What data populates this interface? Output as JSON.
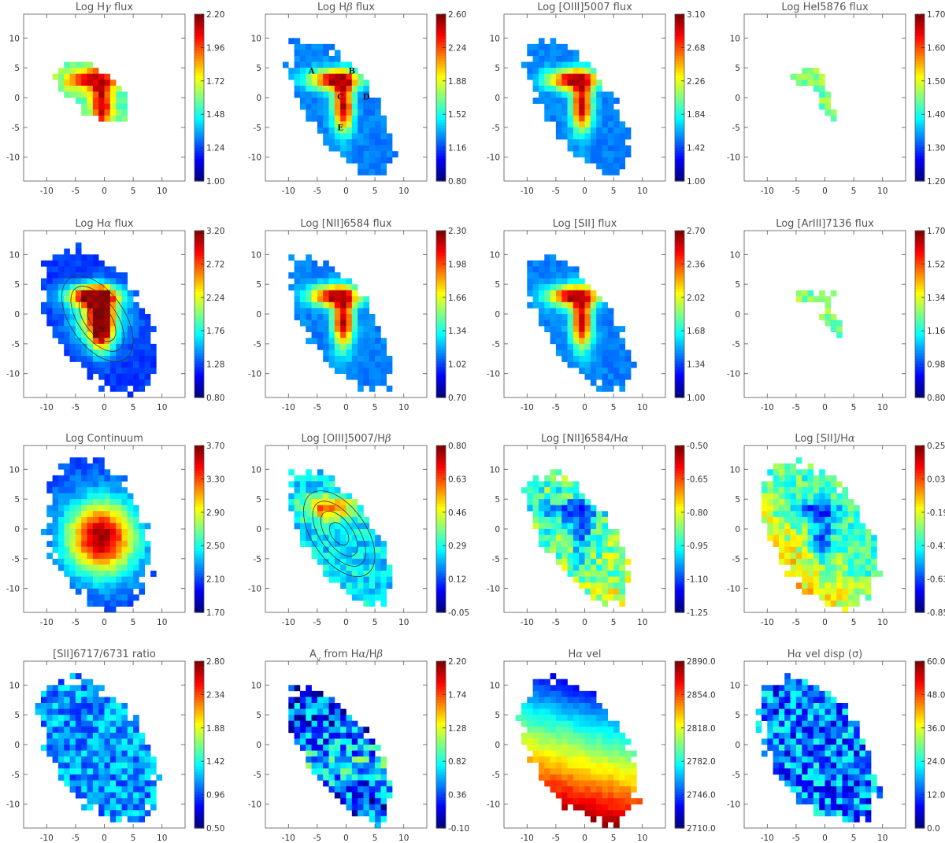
{
  "chart_data": [
    {
      "type": "heatmap",
      "title": "Log Hγ flux",
      "title_main": "Log H",
      "title_greek": "γ",
      "title_rest": " flux",
      "colorbar": {
        "ticks": [
          "2.20",
          "1.96",
          "1.72",
          "1.48",
          "1.24",
          "1.00"
        ],
        "min": 1.0,
        "max": 2.2
      },
      "xticks": [
        "-10",
        "-5",
        "0",
        "5",
        "10"
      ],
      "yticks": [
        "10",
        "5",
        "0",
        "-5",
        "-10"
      ],
      "xlim": [
        -14,
        14
      ],
      "ylim": [
        -14,
        14
      ],
      "shape": "g"
    },
    {
      "type": "heatmap",
      "title": "Log Hβ flux",
      "title_main": "Log H",
      "title_greek": "β",
      "title_rest": " flux",
      "colorbar": {
        "ticks": [
          "2.60",
          "2.24",
          "1.88",
          "1.52",
          "1.16",
          "0.80"
        ],
        "min": 0.8,
        "max": 2.6
      },
      "xticks": [
        "-10",
        "-5",
        "0",
        "5",
        "10"
      ],
      "yticks": [
        "10",
        "5",
        "0",
        "-5",
        "-10"
      ],
      "xlim": [
        -14,
        14
      ],
      "ylim": [
        -14,
        14
      ],
      "shape": "main",
      "knots": [
        {
          "label": "A",
          "x": -6,
          "y": 4
        },
        {
          "label": "B",
          "x": 1,
          "y": 4
        },
        {
          "label": "C",
          "x": -1,
          "y": -0.3
        },
        {
          "label": "D",
          "x": 3.5,
          "y": -0.3
        },
        {
          "label": "E",
          "x": -1,
          "y": -5.5
        }
      ]
    },
    {
      "type": "heatmap",
      "title": "Log [OIII]5007 flux",
      "title_main": "Log [OIII]5007 flux",
      "title_greek": "",
      "title_rest": "",
      "colorbar": {
        "ticks": [
          "3.10",
          "2.68",
          "2.26",
          "1.84",
          "1.42",
          "1.00"
        ],
        "min": 1.0,
        "max": 3.1
      },
      "xticks": [
        "-10",
        "-5",
        "0",
        "5",
        "10"
      ],
      "yticks": [
        "10",
        "5",
        "0",
        "-5",
        "-10"
      ],
      "xlim": [
        -14,
        14
      ],
      "ylim": [
        -14,
        14
      ],
      "shape": "main"
    },
    {
      "type": "heatmap",
      "title": "Log HeI5876 flux",
      "title_main": "Log HeI5876 flux",
      "title_greek": "",
      "title_rest": "",
      "colorbar": {
        "ticks": [
          "1.70",
          "1.60",
          "1.50",
          "1.40",
          "1.30",
          "1.20"
        ],
        "min": 1.2,
        "max": 1.7
      },
      "xticks": [
        "-10",
        "-5",
        "0",
        "5",
        "10"
      ],
      "yticks": [
        "10",
        "5",
        "0",
        "-5",
        "-10"
      ],
      "xlim": [
        -14,
        14
      ],
      "ylim": [
        -14,
        14
      ],
      "shape": "he"
    },
    {
      "type": "heatmap",
      "title": "Log Hα flux",
      "title_main": "Log H",
      "title_greek": "α",
      "title_rest": " flux",
      "colorbar": {
        "ticks": [
          "3.20",
          "2.72",
          "2.24",
          "1.76",
          "1.28",
          "0.80"
        ],
        "min": 0.8,
        "max": 3.2
      },
      "xticks": [
        "-10",
        "-5",
        "0",
        "5",
        "10"
      ],
      "yticks": [
        "10",
        "5",
        "0",
        "-5",
        "-10"
      ],
      "xlim": [
        -14,
        14
      ],
      "ylim": [
        -14,
        14
      ],
      "shape": "wide",
      "contours": true
    },
    {
      "type": "heatmap",
      "title": "Log [NII]6584 flux",
      "title_main": "Log [NII]6584 flux",
      "title_greek": "",
      "title_rest": "",
      "colorbar": {
        "ticks": [
          "2.30",
          "1.98",
          "1.66",
          "1.34",
          "1.02",
          "0.70"
        ],
        "min": 0.7,
        "max": 2.3
      },
      "xticks": [
        "-10",
        "-5",
        "0",
        "5",
        "10"
      ],
      "yticks": [
        "10",
        "5",
        "0",
        "-5",
        "-10"
      ],
      "xlim": [
        -14,
        14
      ],
      "ylim": [
        -14,
        14
      ],
      "shape": "main"
    },
    {
      "type": "heatmap",
      "title": "Log [SII] flux",
      "title_main": "Log [SII] flux",
      "title_greek": "",
      "title_rest": "",
      "colorbar": {
        "ticks": [
          "2.70",
          "2.36",
          "2.02",
          "1.68",
          "1.34",
          "1.00"
        ],
        "min": 1.0,
        "max": 2.7
      },
      "xticks": [
        "-10",
        "-5",
        "0",
        "5",
        "10"
      ],
      "yticks": [
        "10",
        "5",
        "0",
        "-5",
        "-10"
      ],
      "xlim": [
        -14,
        14
      ],
      "ylim": [
        -14,
        14
      ],
      "shape": "main"
    },
    {
      "type": "heatmap",
      "title": "Log [ArIII]7136 flux",
      "title_main": "Log [ArIII]7136 flux",
      "title_greek": "",
      "title_rest": "",
      "colorbar": {
        "ticks": [
          "1.70",
          "1.52",
          "1.34",
          "1.16",
          "0.98",
          "0.80"
        ],
        "min": 0.8,
        "max": 1.7
      },
      "xticks": [
        "-10",
        "-5",
        "0",
        "5",
        "10"
      ],
      "yticks": [
        "10",
        "5",
        "0",
        "-5",
        "-10"
      ],
      "xlim": [
        -14,
        14
      ],
      "ylim": [
        -14,
        14
      ],
      "shape": "ar"
    },
    {
      "type": "heatmap",
      "title": "Log Continuum",
      "title_main": "Log Continuum",
      "title_greek": "",
      "title_rest": "",
      "colorbar": {
        "ticks": [
          "3.70",
          "3.30",
          "2.90",
          "2.50",
          "2.10",
          "1.70"
        ],
        "min": 1.7,
        "max": 3.7
      },
      "xticks": [
        "-10",
        "-5",
        "0",
        "5",
        "10"
      ],
      "yticks": [
        "10",
        "5",
        "0",
        "-5",
        "-10"
      ],
      "xlim": [
        -14,
        14
      ],
      "ylim": [
        -14,
        14
      ],
      "shape": "cont"
    },
    {
      "type": "heatmap",
      "title": "Log [OIII]5007/Hβ",
      "title_main": "Log [OIII]5007/H",
      "title_greek": "β",
      "title_rest": "",
      "colorbar": {
        "ticks": [
          "0.80",
          "0.63",
          "0.46",
          "0.29",
          "0.12",
          "-0.05"
        ],
        "min": -0.05,
        "max": 0.8
      },
      "xticks": [
        "-10",
        "-5",
        "0",
        "5",
        "10"
      ],
      "yticks": [
        "10",
        "5",
        "0",
        "-5",
        "-10"
      ],
      "xlim": [
        -14,
        14
      ],
      "ylim": [
        -14,
        14
      ],
      "shape": "main",
      "contours": true
    },
    {
      "type": "heatmap",
      "title": "Log [NII]6584/Hα",
      "title_main": "Log [NII]6584/H",
      "title_greek": "α",
      "title_rest": "",
      "colorbar": {
        "ticks": [
          "-0.50",
          "-0.65",
          "-0.80",
          "-0.95",
          "-1.10",
          "-1.25"
        ],
        "min": -1.25,
        "max": -0.5
      },
      "xticks": [
        "-10",
        "-5",
        "0",
        "5",
        "10"
      ],
      "yticks": [
        "10",
        "5",
        "0",
        "-5",
        "-10"
      ],
      "xlim": [
        -14,
        14
      ],
      "ylim": [
        -14,
        14
      ],
      "shape": "main"
    },
    {
      "type": "heatmap",
      "title": "Log [SII]/Hα",
      "title_main": "Log [SII]/H",
      "title_greek": "α",
      "title_rest": "",
      "colorbar": {
        "ticks": [
          "0.25",
          "0.03",
          "-0.19",
          "-0.41",
          "-0.63",
          "-0.85"
        ],
        "min": -0.85,
        "max": 0.25
      },
      "xticks": [
        "-10",
        "-5",
        "0",
        "5",
        "10"
      ],
      "yticks": [
        "10",
        "5",
        "0",
        "-5",
        "-10"
      ],
      "xlim": [
        -14,
        14
      ],
      "ylim": [
        -14,
        14
      ],
      "shape": "wide"
    },
    {
      "type": "heatmap",
      "title": "[SII]6717/6731 ratio",
      "title_main": "[SII]6717/6731 ratio",
      "title_greek": "",
      "title_rest": "",
      "colorbar": {
        "ticks": [
          "2.80",
          "2.34",
          "1.88",
          "1.42",
          "0.96",
          "0.50"
        ],
        "min": 0.5,
        "max": 2.8
      },
      "xticks": [
        "-10",
        "-5",
        "0",
        "5",
        "10"
      ],
      "yticks": [
        "10",
        "5",
        "0",
        "-5",
        "-10"
      ],
      "xlim": [
        -14,
        14
      ],
      "ylim": [
        -14,
        14
      ],
      "shape": "wide"
    },
    {
      "type": "heatmap",
      "title": "Av from Hα/Hβ",
      "title_main": "A",
      "title_sub": "v",
      "title_mid": " from H",
      "title_greek": "α",
      "title_mid2": "/H",
      "title_greek2": "β",
      "title_rest": "",
      "colorbar": {
        "ticks": [
          "2.20",
          "1.74",
          "1.28",
          "0.82",
          "0.36",
          "-0.10"
        ],
        "min": -0.1,
        "max": 2.2
      },
      "xticks": [
        "-10",
        "-5",
        "0",
        "5",
        "10"
      ],
      "yticks": [
        "10",
        "5",
        "0",
        "-5",
        "-10"
      ],
      "xlim": [
        -14,
        14
      ],
      "ylim": [
        -14,
        14
      ],
      "shape": "main"
    },
    {
      "type": "heatmap",
      "title": "Hα vel",
      "title_main": "H",
      "title_greek": "α",
      "title_rest": " vel",
      "colorbar": {
        "ticks": [
          "2890.0",
          "2854.0",
          "2818.0",
          "2782.0",
          "2746.0",
          "2710.0"
        ],
        "min": 2710,
        "max": 2890
      },
      "xticks": [
        "-10",
        "-5",
        "0",
        "5",
        "10"
      ],
      "yticks": [
        "10",
        "5",
        "0",
        "-5",
        "-10"
      ],
      "xlim": [
        -14,
        14
      ],
      "ylim": [
        -14,
        14
      ],
      "shape": "wide"
    },
    {
      "type": "heatmap",
      "title": "Hα vel disp (σ)",
      "title_main": "H",
      "title_greek": "α",
      "title_rest": " vel disp (σ)",
      "colorbar": {
        "ticks": [
          "60.0",
          "48.0",
          "36.0",
          "24.0",
          "12.0",
          "0.0"
        ],
        "min": 0,
        "max": 60
      },
      "xticks": [
        "-10",
        "-5",
        "0",
        "5",
        "10"
      ],
      "yticks": [
        "10",
        "5",
        "0",
        "-5",
        "-10"
      ],
      "xlim": [
        -14,
        14
      ],
      "ylim": [
        -14,
        14
      ],
      "shape": "wide"
    }
  ]
}
